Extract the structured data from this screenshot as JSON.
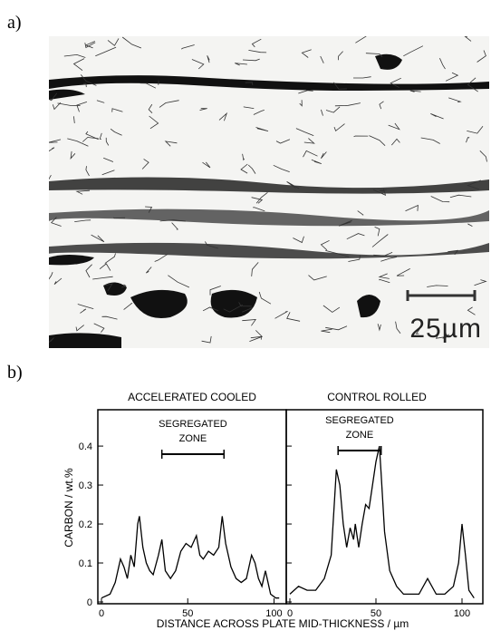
{
  "panels": {
    "a_label": "a)",
    "b_label": "b)"
  },
  "micrograph": {
    "scale_bar_text": "25µm"
  },
  "chart_data": [
    {
      "type": "line",
      "title": "ACCELERATED COOLED",
      "annotation": "SEGREGATED\nZONE",
      "segregated_zone_x": [
        35,
        71
      ],
      "ylabel": "CARBON / wt.%",
      "xlim": [
        0,
        105
      ],
      "ylim": [
        0,
        0.47
      ],
      "xticks": [
        0,
        50,
        100
      ],
      "yticks": [
        0,
        0.1,
        0.2,
        0.3,
        0.4
      ],
      "ytick_labels": [
        "0",
        "0.1",
        "0.2",
        "0.3",
        "0.4"
      ],
      "x": [
        0,
        5,
        8,
        11,
        13,
        15,
        17,
        19,
        21,
        22,
        24,
        26,
        28,
        30,
        33,
        35,
        37,
        40,
        43,
        46,
        49,
        52,
        55,
        57,
        59,
        62,
        65,
        68,
        70,
        72,
        75,
        78,
        81,
        84,
        87,
        89,
        91,
        93,
        95,
        98,
        101,
        103
      ],
      "y": [
        0.01,
        0.02,
        0.05,
        0.11,
        0.09,
        0.06,
        0.12,
        0.09,
        0.2,
        0.22,
        0.14,
        0.1,
        0.08,
        0.07,
        0.12,
        0.16,
        0.08,
        0.06,
        0.08,
        0.13,
        0.15,
        0.14,
        0.17,
        0.12,
        0.11,
        0.13,
        0.12,
        0.14,
        0.22,
        0.15,
        0.09,
        0.06,
        0.05,
        0.06,
        0.12,
        0.1,
        0.06,
        0.04,
        0.08,
        0.02,
        0.01,
        0.01
      ]
    },
    {
      "type": "line",
      "title": "CONTROL ROLLED",
      "annotation": "SEGREGATED\nZONE",
      "segregated_zone_x": [
        28,
        53
      ],
      "xlim": [
        0,
        110
      ],
      "ylim": [
        0,
        0.47
      ],
      "xticks": [
        0,
        50,
        100
      ],
      "x": [
        0,
        5,
        10,
        15,
        20,
        24,
        27,
        29,
        31,
        33,
        35,
        37,
        38,
        40,
        42,
        44,
        46,
        48,
        50,
        51,
        52,
        53,
        55,
        58,
        62,
        66,
        70,
        75,
        80,
        85,
        90,
        95,
        98,
        100,
        102,
        104,
        107
      ],
      "y": [
        0.02,
        0.04,
        0.03,
        0.03,
        0.06,
        0.12,
        0.34,
        0.3,
        0.2,
        0.14,
        0.19,
        0.16,
        0.2,
        0.14,
        0.2,
        0.25,
        0.24,
        0.3,
        0.36,
        0.38,
        0.4,
        0.33,
        0.18,
        0.08,
        0.04,
        0.02,
        0.02,
        0.02,
        0.06,
        0.02,
        0.02,
        0.04,
        0.1,
        0.2,
        0.12,
        0.03,
        0.01
      ]
    }
  ],
  "chart_common": {
    "xlabel": "DISTANCE ACROSS PLATE MID-THICKNESS  /   µm"
  },
  "colors": {
    "ink": "#000000",
    "micrograph_bg": "#f4f4f2",
    "carbide": "#111111"
  }
}
